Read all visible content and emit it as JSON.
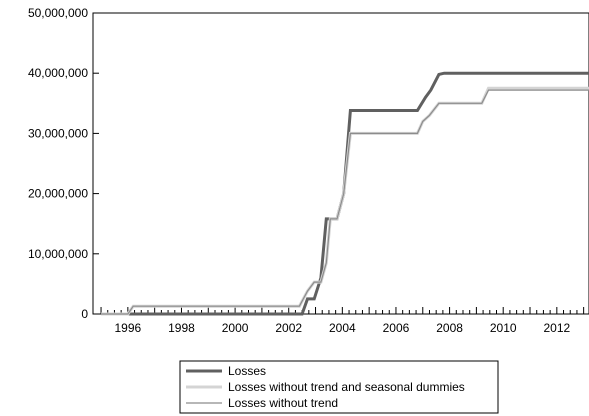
{
  "chart_data": {
    "type": "line",
    "title": "",
    "xlabel": "",
    "ylabel": "",
    "xlim": [
      1994.7,
      2013.2
    ],
    "ylim": [
      0,
      50000000
    ],
    "y_ticks": [
      {
        "value": 0,
        "label": "0"
      },
      {
        "value": 10000000,
        "label": "10,000,000"
      },
      {
        "value": 20000000,
        "label": "20,000,000"
      },
      {
        "value": 30000000,
        "label": "30,000,000"
      },
      {
        "value": 40000000,
        "label": "40,000,000"
      },
      {
        "value": 50000000,
        "label": "50,000,000"
      }
    ],
    "x_ticks": [
      "1996",
      "1998",
      "2000",
      "2002",
      "2004",
      "2006",
      "2008",
      "2010",
      "2012"
    ],
    "grid": false,
    "legend_position": "bottom",
    "series": [
      {
        "name": "Losses",
        "color": "#606060",
        "points": [
          [
            1995.0,
            0
          ],
          [
            2002.5,
            0
          ],
          [
            2002.7,
            2500000
          ],
          [
            2002.95,
            2500000
          ],
          [
            2003.2,
            6000000
          ],
          [
            2003.4,
            15800000
          ],
          [
            2003.8,
            15800000
          ],
          [
            2004.05,
            20000000
          ],
          [
            2004.3,
            33800000
          ],
          [
            2006.8,
            33800000
          ],
          [
            2007.1,
            36000000
          ],
          [
            2007.3,
            37200000
          ],
          [
            2007.6,
            39800000
          ],
          [
            2007.8,
            40000000
          ],
          [
            2013.2,
            40000000
          ]
        ]
      },
      {
        "name": "Losses without trend and seasonal dummies",
        "color": "#d4d4d4",
        "points": [
          [
            1995.0,
            0
          ],
          [
            1996.0,
            0
          ],
          [
            1996.2,
            1300000
          ],
          [
            2002.4,
            1300000
          ],
          [
            2002.7,
            3800000
          ],
          [
            2002.95,
            5300000
          ],
          [
            2003.2,
            5300000
          ],
          [
            2003.4,
            8500000
          ],
          [
            2003.55,
            15800000
          ],
          [
            2003.8,
            15800000
          ],
          [
            2004.05,
            20000000
          ],
          [
            2004.3,
            30000000
          ],
          [
            2006.8,
            30000000
          ],
          [
            2007.0,
            32000000
          ],
          [
            2007.25,
            33000000
          ],
          [
            2007.6,
            35000000
          ],
          [
            2009.2,
            35000000
          ],
          [
            2009.45,
            37500000
          ],
          [
            2013.2,
            37500000
          ]
        ]
      },
      {
        "name": "Losses without trend",
        "color": "#8c8c8c",
        "points": [
          [
            1995.0,
            0
          ],
          [
            1996.0,
            0
          ],
          [
            1996.2,
            1300000
          ],
          [
            2002.4,
            1300000
          ],
          [
            2002.7,
            3800000
          ],
          [
            2002.95,
            5300000
          ],
          [
            2003.2,
            5300000
          ],
          [
            2003.4,
            8500000
          ],
          [
            2003.55,
            15800000
          ],
          [
            2003.8,
            15800000
          ],
          [
            2004.05,
            20000000
          ],
          [
            2004.3,
            30000000
          ],
          [
            2006.8,
            30000000
          ],
          [
            2007.0,
            32000000
          ],
          [
            2007.25,
            33000000
          ],
          [
            2007.6,
            35000000
          ],
          [
            2009.2,
            35000000
          ],
          [
            2009.45,
            37200000
          ],
          [
            2013.2,
            37200000
          ]
        ]
      }
    ]
  },
  "style": {
    "series_widths": [
      3,
      3,
      1.2
    ]
  }
}
